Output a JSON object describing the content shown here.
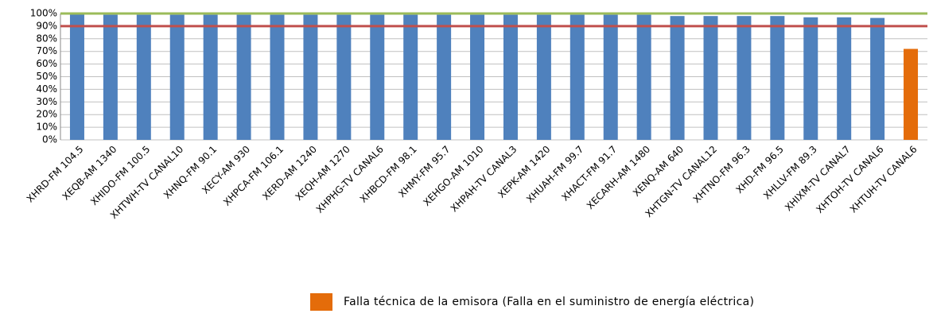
{
  "chart_data": {
    "type": "bar",
    "categories": [
      "XHRD-FM 104.5",
      "XEQB-AM 1340",
      "XHIDO-FM 100.5",
      "XHTWH-TV CANAL10",
      "XHNQ-FM 90.1",
      "XECY-AM 930",
      "XHPCA-FM 106.1",
      "XERD-AM 1240",
      "XEQH-AM 1270",
      "XHPHG-TV CANAL6",
      "XHBCD-FM 98.1",
      "XHMY-FM 95.7",
      "XEHGO-AM 1010",
      "XHPAH-TV CANAL3",
      "XEPK-AM 1420",
      "XHUAH-FM 99.7",
      "XHACT-FM 91.7",
      "XECARH-AM 1480",
      "XENQ-AM 640",
      "XHTGN-TV CANAL12",
      "XHTNO-FM 96.3",
      "XHD-FM 96.5",
      "XHLLV-FM 89.3",
      "XHIXM-TV CANAL7",
      "XHTOH-TV CANAL6",
      "XHTUH-TV CANAL6"
    ],
    "values": [
      100,
      99,
      99,
      99,
      99,
      99,
      99,
      99,
      99,
      99,
      99,
      99,
      99,
      99,
      99,
      99,
      99,
      99,
      98,
      98,
      98,
      98,
      97,
      97,
      96.5,
      72
    ],
    "colors": [
      "#4f81bd",
      "#4f81bd",
      "#4f81bd",
      "#4f81bd",
      "#4f81bd",
      "#4f81bd",
      "#4f81bd",
      "#4f81bd",
      "#4f81bd",
      "#4f81bd",
      "#4f81bd",
      "#4f81bd",
      "#4f81bd",
      "#4f81bd",
      "#4f81bd",
      "#4f81bd",
      "#4f81bd",
      "#4f81bd",
      "#4f81bd",
      "#4f81bd",
      "#4f81bd",
      "#4f81bd",
      "#4f81bd",
      "#4f81bd",
      "#4f81bd",
      "#e46c0a"
    ],
    "ylim": [
      0,
      100
    ],
    "yticks": [
      {
        "value": 0,
        "label": "0%"
      },
      {
        "value": 10,
        "label": "10%"
      },
      {
        "value": 20,
        "label": "20%"
      },
      {
        "value": 30,
        "label": "30%"
      },
      {
        "value": 40,
        "label": "40%"
      },
      {
        "value": 50,
        "label": "50%"
      },
      {
        "value": 60,
        "label": "60%"
      },
      {
        "value": 70,
        "label": "70%"
      },
      {
        "value": 80,
        "label": "80%"
      },
      {
        "value": 90,
        "label": "90%"
      },
      {
        "value": 100,
        "label": "100%"
      }
    ],
    "grid": true,
    "reference_lines": [
      {
        "value": 100,
        "color": "#9bbb59"
      },
      {
        "value": 90,
        "color": "#c0504d"
      }
    ],
    "legend": [
      {
        "label": "Falla técnica de la emisora (Falla en el suministro de energía eléctrica)",
        "color": "#e46c0a"
      }
    ]
  }
}
